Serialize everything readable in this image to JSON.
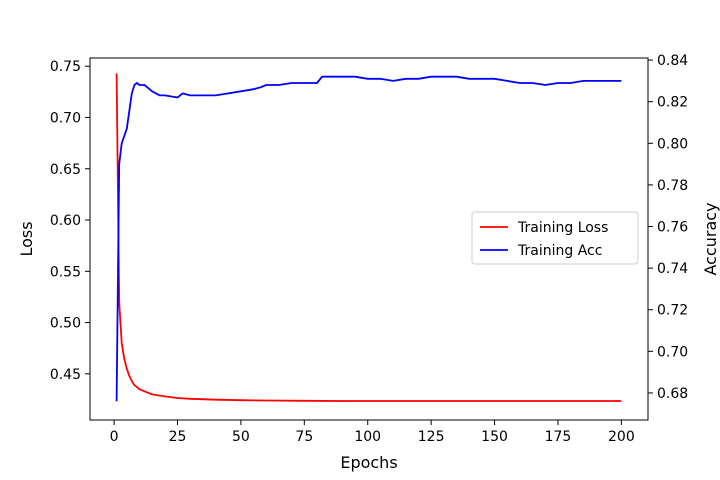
{
  "chart_data": {
    "type": "line",
    "xlabel": "Epochs",
    "ylabel_left": "Loss",
    "ylabel_right": "Accuracy",
    "xlim": [
      -9.5,
      210.5
    ],
    "ylim_left": [
      0.405,
      0.758
    ],
    "ylim_right": [
      0.667,
      0.841
    ],
    "xticks": [
      0,
      25,
      50,
      75,
      100,
      125,
      150,
      175,
      200
    ],
    "yticks_left": [
      0.45,
      0.5,
      0.55,
      0.6,
      0.65,
      0.7,
      0.75
    ],
    "yticks_right": [
      0.68,
      0.7,
      0.72,
      0.74,
      0.76,
      0.78,
      0.8,
      0.82,
      0.84
    ],
    "legend_position": "center-right",
    "grid": false,
    "series": [
      {
        "name": "Training Loss",
        "axis": "left",
        "color": "#ff0000",
        "x": [
          1,
          2,
          3,
          4,
          5,
          6,
          7,
          8,
          10,
          12,
          15,
          20,
          25,
          30,
          40,
          50,
          60,
          75,
          90,
          100,
          125,
          150,
          175,
          200
        ],
        "y": [
          0.743,
          0.52,
          0.48,
          0.465,
          0.455,
          0.448,
          0.443,
          0.439,
          0.435,
          0.433,
          0.43,
          0.428,
          0.4265,
          0.4257,
          0.4248,
          0.4243,
          0.424,
          0.4237,
          0.4235,
          0.4235,
          0.4235,
          0.4235,
          0.4235,
          0.4235
        ]
      },
      {
        "name": "Training Acc",
        "axis": "right",
        "color": "#0000ff",
        "x": [
          1,
          2,
          3,
          5,
          7,
          8,
          9,
          10,
          12,
          15,
          18,
          20,
          25,
          27,
          30,
          35,
          40,
          45,
          50,
          55,
          58,
          60,
          65,
          70,
          75,
          80,
          82,
          85,
          90,
          95,
          100,
          105,
          110,
          115,
          120,
          125,
          130,
          135,
          140,
          145,
          150,
          155,
          160,
          165,
          170,
          175,
          180,
          185,
          190,
          195,
          200
        ],
        "y": [
          0.676,
          0.79,
          0.8,
          0.807,
          0.824,
          0.828,
          0.829,
          0.828,
          0.828,
          0.825,
          0.823,
          0.823,
          0.822,
          0.824,
          0.823,
          0.823,
          0.823,
          0.824,
          0.825,
          0.826,
          0.827,
          0.828,
          0.828,
          0.829,
          0.829,
          0.829,
          0.832,
          0.832,
          0.832,
          0.832,
          0.831,
          0.831,
          0.83,
          0.831,
          0.831,
          0.832,
          0.832,
          0.832,
          0.831,
          0.831,
          0.831,
          0.83,
          0.829,
          0.829,
          0.828,
          0.829,
          0.829,
          0.83,
          0.83,
          0.83,
          0.83
        ]
      }
    ]
  }
}
